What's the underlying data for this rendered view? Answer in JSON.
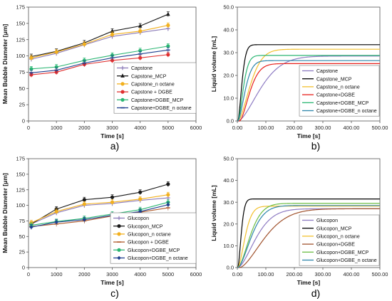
{
  "figure": {
    "panels": [
      {
        "id": "a",
        "label": "a)"
      },
      {
        "id": "b",
        "label": "b)"
      },
      {
        "id": "c",
        "label": "c)"
      },
      {
        "id": "d",
        "label": "d)"
      }
    ]
  },
  "chart_data": [
    {
      "panel": "a)",
      "type": "line",
      "xlabel": "Time [s]",
      "ylabel": "Mean Bubble Diameter [μm]",
      "xlim": [
        0,
        6000
      ],
      "ylim": [
        0,
        175
      ],
      "xticks": [
        0,
        1000,
        2000,
        3000,
        4000,
        5000,
        6000
      ],
      "yticks": [
        0,
        25,
        50,
        75,
        100,
        125,
        150,
        175
      ],
      "grid": false,
      "legend": "bottom-right",
      "x": [
        100,
        1000,
        2000,
        3000,
        4000,
        5000
      ],
      "series": [
        {
          "name": "Capstone",
          "color": "#8B7BB8",
          "marker": "plus",
          "values": [
            95,
            104,
            117,
            130,
            136,
            142
          ]
        },
        {
          "name": "Capstone_MCP",
          "color": "#1a1a1a",
          "marker": "triangle",
          "values": [
            99,
            107,
            120,
            138,
            146,
            164
          ]
        },
        {
          "name": "Capstone_n octane",
          "color": "#F2B01E",
          "marker": "circle",
          "values": [
            97,
            106,
            118,
            133,
            138,
            147
          ]
        },
        {
          "name": "Capstone + DGBE",
          "color": "#E03030",
          "marker": "circle",
          "values": [
            71,
            75,
            87,
            93,
            97,
            102
          ]
        },
        {
          "name": "Capstone+DGBE_MCP",
          "color": "#2BB673",
          "marker": "circle",
          "values": [
            80,
            83,
            93,
            101,
            108,
            115
          ]
        },
        {
          "name": "Capstone+DGBE_n octane",
          "color": "#1F3F8F",
          "marker": "dash",
          "values": [
            74,
            78,
            89,
            97,
            103,
            109
          ]
        }
      ]
    },
    {
      "panel": "b)",
      "type": "line",
      "xlabel": "Time [s]",
      "ylabel": "Liquid volume [mL]",
      "xlim": [
        0,
        500
      ],
      "ylim": [
        0,
        50
      ],
      "xticks": [
        0,
        100,
        200,
        300,
        400,
        500
      ],
      "xtick_labels": [
        "0.00",
        "100.00",
        "200.00",
        "300.00",
        "400.00",
        "500.00"
      ],
      "yticks": [
        0,
        10,
        20,
        30,
        40,
        50
      ],
      "ytick_labels": [
        "0.0",
        "10.0",
        "20.0",
        "30.0",
        "40.0",
        "50.0"
      ],
      "grid": false,
      "legend": "bottom-right",
      "series": [
        {
          "name": "Capstone",
          "color": "#8E7CC3",
          "t0": 2,
          "plateau": 28.5,
          "tau": 100
        },
        {
          "name": "Capstone_MCP",
          "color": "#000000",
          "t0": 2,
          "plateau": 33.5,
          "tau": 18
        },
        {
          "name": "Capstone_n octane",
          "color": "#F2C12E",
          "t0": 2,
          "plateau": 31.5,
          "tau": 55
        },
        {
          "name": "Capstone+DGBE",
          "color": "#E8201A",
          "t0": 8,
          "plateau": 25.2,
          "tau": 45
        },
        {
          "name": "Capstone+DGBE_MCP",
          "color": "#2BB673",
          "t0": 2,
          "plateau": 28.8,
          "tau": 24
        },
        {
          "name": "Capstone+DGBE_n octane",
          "color": "#2E86AB",
          "t0": 2,
          "plateau": 26.5,
          "tau": 32
        }
      ]
    },
    {
      "panel": "c)",
      "type": "line",
      "xlabel": "Time [s]",
      "ylabel": "Mean Bubble Diameter [μm]",
      "xlim": [
        0,
        6000
      ],
      "ylim": [
        0,
        175
      ],
      "xticks": [
        0,
        1000,
        2000,
        3000,
        4000,
        5000,
        6000
      ],
      "yticks": [
        0,
        25,
        50,
        75,
        100,
        125,
        150,
        175
      ],
      "grid": false,
      "legend": "bottom-right",
      "x": [
        100,
        1000,
        2000,
        3000,
        4000,
        5000
      ],
      "series": [
        {
          "name": "Glucopon",
          "color": "#8B7BB8",
          "marker": "plus",
          "values": [
            70,
            88,
            100,
            103,
            108,
            112
          ]
        },
        {
          "name": "Glucopon_MCP",
          "color": "#1a1a1a",
          "marker": "circle",
          "values": [
            70,
            94,
            109,
            113,
            121,
            134
          ]
        },
        {
          "name": "Glucopon_n octane",
          "color": "#F2B01E",
          "marker": "circle",
          "values": [
            72,
            90,
            102,
            105,
            110,
            117
          ]
        },
        {
          "name": "Glucopon + DGBE",
          "color": "#B05A2A",
          "marker": "dash",
          "values": [
            66,
            70,
            75,
            83,
            89,
            96
          ]
        },
        {
          "name": "Glucopon+DGBE_MCP",
          "color": "#2BB673",
          "marker": "circle",
          "values": [
            68,
            74,
            79,
            86,
            93,
            105
          ]
        },
        {
          "name": "Glucopon+DGBE_n octane",
          "color": "#1F3F8F",
          "marker": "diamond",
          "values": [
            65,
            73,
            77,
            84,
            90,
            101
          ]
        }
      ]
    },
    {
      "panel": "d)",
      "type": "line",
      "xlabel": "Time [s]",
      "ylabel": "Liquid volume [mL]",
      "xlim": [
        0,
        500
      ],
      "ylim": [
        0,
        50
      ],
      "xticks": [
        0,
        100,
        200,
        300,
        400,
        500
      ],
      "xtick_labels": [
        "0.00",
        "100.00",
        "200.00",
        "300.00",
        "400.00",
        "500.00"
      ],
      "yticks": [
        0,
        10,
        20,
        30,
        40,
        50
      ],
      "ytick_labels": [
        "0.0",
        "10.0",
        "20.0",
        "30.0",
        "40.0",
        "50.0"
      ],
      "grid": false,
      "legend": "bottom-right",
      "series": [
        {
          "name": "Glucopon",
          "color": "#8E7CC3",
          "t0": 2,
          "plateau": 27.0,
          "tau": 80
        },
        {
          "name": "Glucopon_MCP",
          "color": "#000000",
          "t0": 2,
          "plateau": 31.5,
          "tau": 15
        },
        {
          "name": "Glucopon_n octane",
          "color": "#F2C12E",
          "t0": 2,
          "plateau": 28.2,
          "tau": 32
        },
        {
          "name": "Glucopon+DGBE",
          "color": "#A0522D",
          "t0": 8,
          "plateau": 27.0,
          "tau": 110
        },
        {
          "name": "Glucopon+DGBE_MCP",
          "color": "#6DBE45",
          "t0": 2,
          "plateau": 29.5,
          "tau": 55
        },
        {
          "name": "Glucopon+DGBE_n octane",
          "color": "#2E86AB",
          "t0": 2,
          "plateau": 28.5,
          "tau": 60
        }
      ]
    }
  ]
}
